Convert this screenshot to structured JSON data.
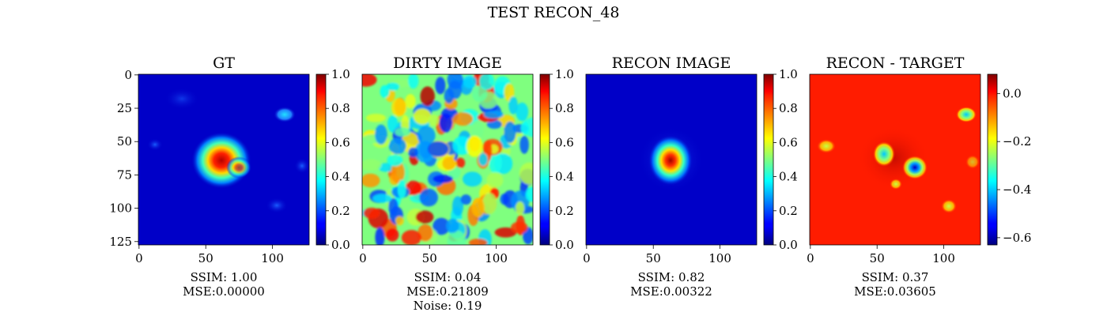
{
  "figure_title": "TEST RECON_48",
  "chart_data": [
    {
      "type": "heatmap",
      "title": "GT",
      "colormap": "jet",
      "x_ticks": [
        "0",
        "50",
        "100"
      ],
      "y_ticks": [
        "0",
        "25",
        "50",
        "75",
        "100",
        "125"
      ],
      "show_y_ticks": true,
      "colorbar_range": [
        0,
        1
      ],
      "colorbar_ticks": [
        "0.0",
        "0.2",
        "0.4",
        "0.6",
        "0.8",
        "1.0"
      ],
      "caption": [
        "SSIM: 1.00",
        "MSE:0.00000"
      ]
    },
    {
      "type": "heatmap",
      "title": "DIRTY IMAGE",
      "colormap": "jet",
      "x_ticks": [
        "0",
        "50",
        "100"
      ],
      "show_y_ticks": false,
      "colorbar_range": [
        0,
        1
      ],
      "colorbar_ticks": [
        "0.0",
        "0.2",
        "0.4",
        "0.6",
        "0.8",
        "1.0"
      ],
      "caption": [
        "SSIM: 0.04",
        "MSE:0.21809",
        "Noise: 0.19"
      ]
    },
    {
      "type": "heatmap",
      "title": "RECON IMAGE",
      "colormap": "jet",
      "x_ticks": [
        "0",
        "50",
        "100"
      ],
      "show_y_ticks": false,
      "colorbar_range": [
        0,
        1
      ],
      "colorbar_ticks": [
        "0.0",
        "0.2",
        "0.4",
        "0.6",
        "0.8",
        "1.0"
      ],
      "caption": [
        "SSIM: 0.82",
        "MSE:0.00322"
      ]
    },
    {
      "type": "heatmap",
      "title": "RECON - TARGET",
      "colormap": "jet",
      "x_ticks": [
        "0",
        "50",
        "100"
      ],
      "show_y_ticks": false,
      "colorbar_range": [
        -0.63,
        0.08
      ],
      "colorbar_ticks": [
        "−0.6",
        "−0.4",
        "−0.2",
        "0.0"
      ],
      "caption": [
        "SSIM: 0.37",
        "MSE:0.03605"
      ]
    }
  ]
}
